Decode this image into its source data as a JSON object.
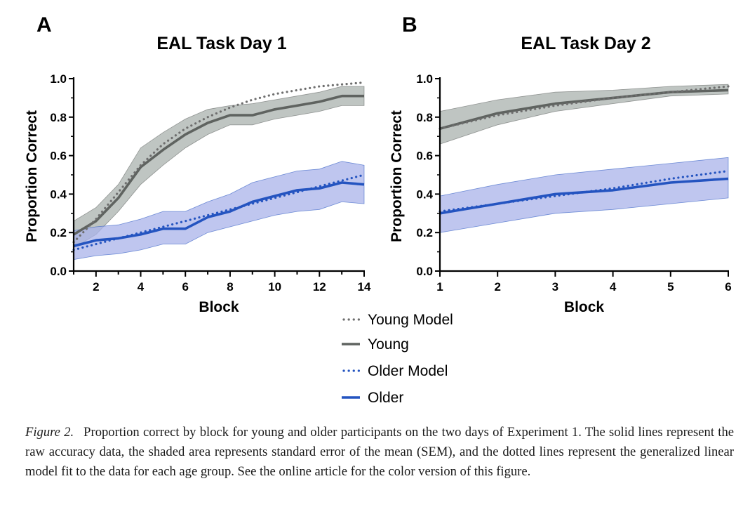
{
  "chart_data": [
    {
      "type": "line",
      "panel_letter": "A",
      "title": "EAL Task Day 1",
      "xlabel": "Block",
      "ylabel": "Proportion Correct",
      "xlim": [
        1,
        14
      ],
      "ylim": [
        0,
        1
      ],
      "x_ticks": [
        "2",
        "4",
        "6",
        "8",
        "10",
        "12",
        "14"
      ],
      "y_ticks": [
        "0.0",
        "0.2",
        "0.4",
        "0.6",
        "0.8",
        "1.0"
      ],
      "x": [
        1,
        2,
        3,
        4,
        5,
        6,
        7,
        8,
        9,
        10,
        11,
        12,
        13,
        14
      ],
      "series": [
        {
          "name": "Young",
          "style": "solid",
          "color": "#5f6360",
          "values": [
            0.19,
            0.26,
            0.38,
            0.54,
            0.63,
            0.71,
            0.77,
            0.81,
            0.81,
            0.84,
            0.86,
            0.88,
            0.91,
            0.91
          ],
          "sem_lower": [
            0.12,
            0.19,
            0.31,
            0.45,
            0.55,
            0.64,
            0.71,
            0.76,
            0.76,
            0.79,
            0.81,
            0.83,
            0.86,
            0.86
          ],
          "sem_upper": [
            0.26,
            0.33,
            0.45,
            0.64,
            0.72,
            0.79,
            0.84,
            0.86,
            0.87,
            0.89,
            0.91,
            0.93,
            0.96,
            0.96
          ]
        },
        {
          "name": "Young Model",
          "style": "dotted",
          "color": "#6e6e6e",
          "values": [
            0.15,
            0.27,
            0.41,
            0.55,
            0.66,
            0.74,
            0.8,
            0.85,
            0.89,
            0.92,
            0.94,
            0.96,
            0.97,
            0.98
          ]
        },
        {
          "name": "Older",
          "style": "solid",
          "color": "#2454c0",
          "values": [
            0.13,
            0.16,
            0.17,
            0.19,
            0.22,
            0.22,
            0.28,
            0.31,
            0.36,
            0.39,
            0.42,
            0.43,
            0.46,
            0.45
          ],
          "sem_lower": [
            0.06,
            0.08,
            0.09,
            0.11,
            0.14,
            0.14,
            0.2,
            0.23,
            0.26,
            0.29,
            0.31,
            0.32,
            0.36,
            0.35
          ],
          "sem_upper": [
            0.21,
            0.23,
            0.24,
            0.27,
            0.31,
            0.31,
            0.36,
            0.4,
            0.46,
            0.49,
            0.52,
            0.53,
            0.57,
            0.55
          ]
        },
        {
          "name": "Older Model",
          "style": "dotted",
          "color": "#2454c0",
          "values": [
            0.11,
            0.14,
            0.17,
            0.2,
            0.23,
            0.26,
            0.29,
            0.32,
            0.35,
            0.38,
            0.41,
            0.44,
            0.47,
            0.5
          ]
        }
      ]
    },
    {
      "type": "line",
      "panel_letter": "B",
      "title": "EAL Task Day 2",
      "xlabel": "Block",
      "ylabel": "Proportion Correct",
      "xlim": [
        1,
        6
      ],
      "ylim": [
        0,
        1
      ],
      "x_ticks": [
        "1",
        "2",
        "3",
        "4",
        "5",
        "6"
      ],
      "y_ticks": [
        "0.0",
        "0.2",
        "0.4",
        "0.6",
        "0.8",
        "1.0"
      ],
      "x": [
        1,
        2,
        3,
        4,
        5,
        6
      ],
      "series": [
        {
          "name": "Young",
          "style": "solid",
          "color": "#5f6360",
          "values": [
            0.74,
            0.82,
            0.87,
            0.9,
            0.93,
            0.94
          ],
          "sem_lower": [
            0.66,
            0.76,
            0.83,
            0.87,
            0.91,
            0.92
          ],
          "sem_upper": [
            0.83,
            0.89,
            0.93,
            0.94,
            0.96,
            0.97
          ]
        },
        {
          "name": "Young Model",
          "style": "dotted",
          "color": "#6e6e6e",
          "values": [
            0.74,
            0.81,
            0.86,
            0.9,
            0.93,
            0.96
          ]
        },
        {
          "name": "Older",
          "style": "solid",
          "color": "#2454c0",
          "values": [
            0.3,
            0.35,
            0.4,
            0.42,
            0.46,
            0.48
          ],
          "sem_lower": [
            0.2,
            0.25,
            0.3,
            0.32,
            0.35,
            0.38
          ],
          "sem_upper": [
            0.39,
            0.45,
            0.5,
            0.53,
            0.56,
            0.59
          ]
        },
        {
          "name": "Older Model",
          "style": "dotted",
          "color": "#2454c0",
          "values": [
            0.31,
            0.35,
            0.39,
            0.43,
            0.48,
            0.52
          ]
        }
      ]
    }
  ],
  "legend": [
    {
      "label": "Young Model",
      "style": "dotted",
      "color": "#6e6e6e"
    },
    {
      "label": "Young",
      "style": "solid",
      "color": "#5f6360"
    },
    {
      "label": "Older Model",
      "style": "dotted",
      "color": "#2454c0"
    },
    {
      "label": "Older",
      "style": "solid",
      "color": "#2454c0"
    }
  ],
  "colors": {
    "young_band": "#a9b2ad",
    "older_band": "#a9b3ea",
    "axis": "#000000"
  },
  "caption": {
    "label": "Figure 2.",
    "text": "Proportion correct by block for young and older participants on the two days of Experiment 1. The solid lines represent the raw accuracy data, the shaded area represents standard error of the mean (SEM), and the dotted lines represent the generalized linear model fit to the data for each age group. See the online article for the color version of this figure."
  }
}
